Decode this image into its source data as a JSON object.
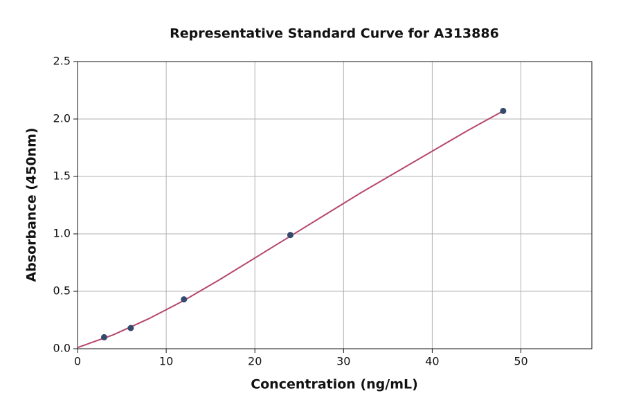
{
  "chart_data": {
    "type": "scatter",
    "title": "Representative Standard Curve for A313886",
    "x_label": "Concentration (ng/mL)",
    "y_label": "Absorbance (450nm)",
    "xlim": [
      0,
      58
    ],
    "ylim": [
      0,
      2.5
    ],
    "xticks": [
      0,
      10,
      20,
      30,
      40,
      50
    ],
    "yticks": [
      {
        "value": 0,
        "label": "0.0"
      },
      0.5,
      {
        "value": 1,
        "label": "1.0"
      },
      1.5,
      {
        "value": 2,
        "label": "2.0"
      },
      2.5
    ],
    "grid": true,
    "points": {
      "color": "#34496e",
      "x": [
        3,
        6,
        12,
        24,
        48
      ],
      "y": [
        0.1,
        0.18,
        0.43,
        0.99,
        2.07
      ]
    },
    "fit": {
      "color": "#b5476a",
      "x": [
        0,
        4,
        8,
        12,
        16,
        20,
        24,
        28,
        32,
        36,
        40,
        44,
        48
      ],
      "y": [
        0.01,
        0.12,
        0.26,
        0.42,
        0.6,
        0.79,
        0.98,
        1.17,
        1.36,
        1.54,
        1.72,
        1.9,
        2.07
      ]
    }
  }
}
